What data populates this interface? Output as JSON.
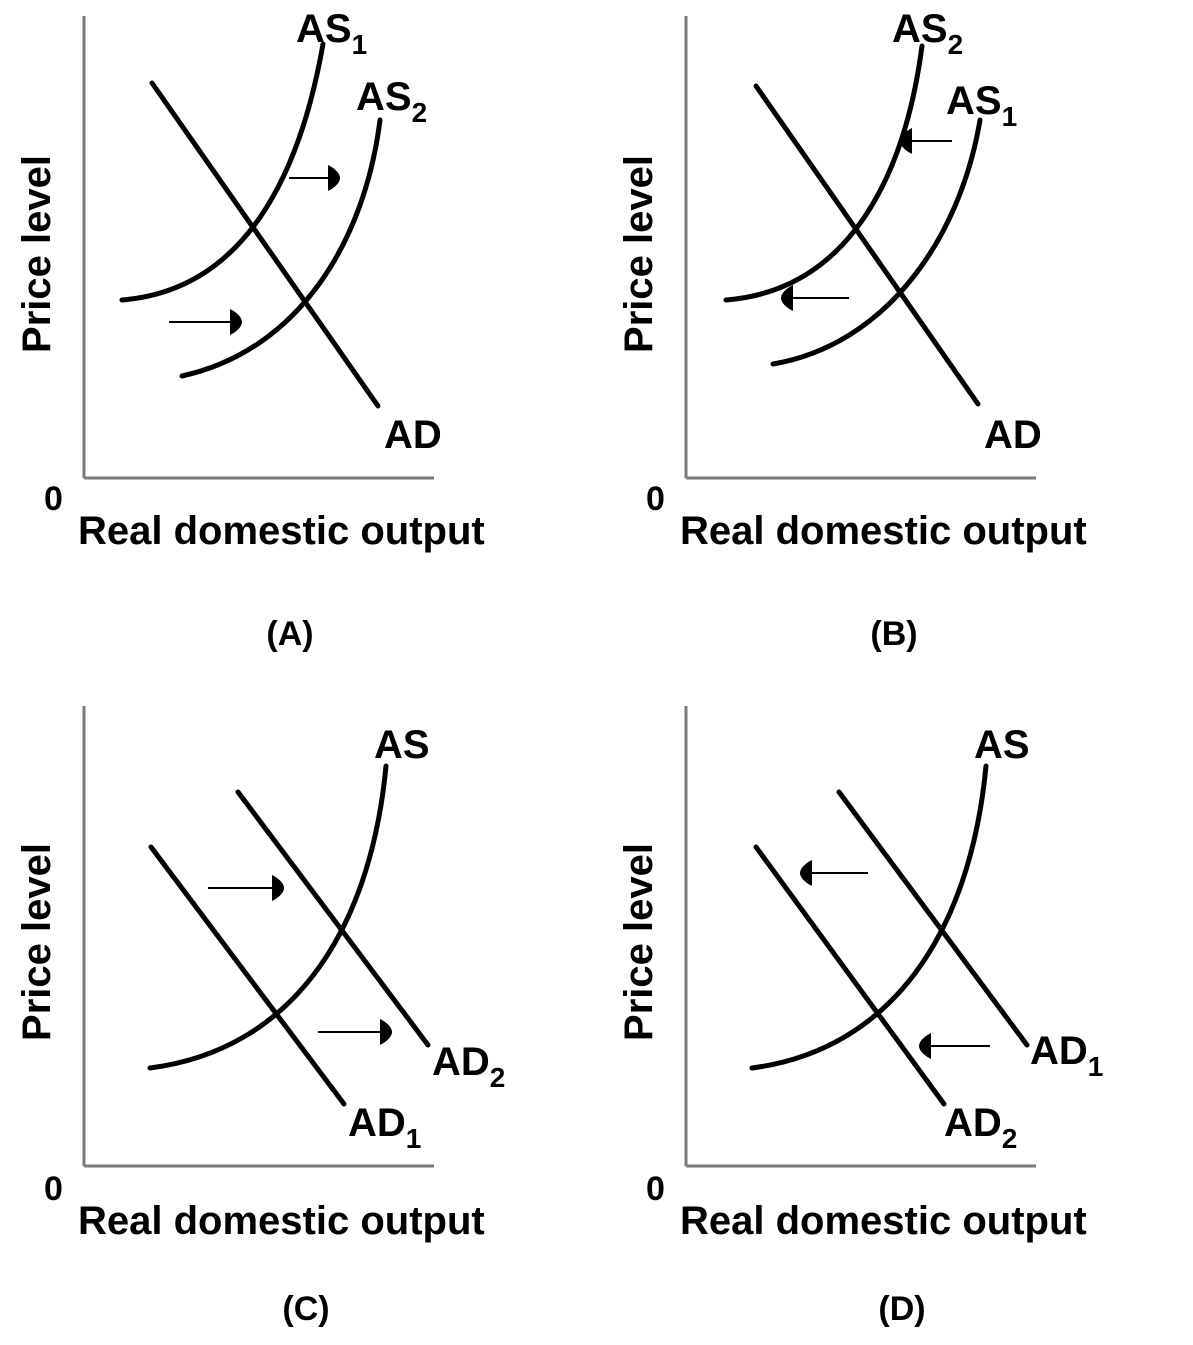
{
  "panels": [
    {
      "id": "A",
      "panel_label": "(A)",
      "x_axis_label": "Real domestic output",
      "y_axis_label": "Price level",
      "origin_label": "0",
      "curves": [
        {
          "name": "AS",
          "sub": "1"
        },
        {
          "name": "AS",
          "sub": "2"
        },
        {
          "name": "AD",
          "sub": ""
        }
      ],
      "shift": "right"
    },
    {
      "id": "B",
      "panel_label": "(B)",
      "x_axis_label": "Real domestic output",
      "y_axis_label": "Price level",
      "origin_label": "0",
      "curves": [
        {
          "name": "AS",
          "sub": "2"
        },
        {
          "name": "AS",
          "sub": "1"
        },
        {
          "name": "AD",
          "sub": ""
        }
      ],
      "shift": "left"
    },
    {
      "id": "C",
      "panel_label": "(C)",
      "x_axis_label": "Real domestic output",
      "y_axis_label": "Price level",
      "origin_label": "0",
      "curves": [
        {
          "name": "AS",
          "sub": ""
        },
        {
          "name": "AD",
          "sub": "2"
        },
        {
          "name": "AD",
          "sub": "1"
        }
      ],
      "shift": "right"
    },
    {
      "id": "D",
      "panel_label": "(D)",
      "x_axis_label": "Real domestic output",
      "y_axis_label": "Price level",
      "origin_label": "0",
      "curves": [
        {
          "name": "AS",
          "sub": ""
        },
        {
          "name": "AD",
          "sub": "1"
        },
        {
          "name": "AD",
          "sub": "2"
        }
      ],
      "shift": "left"
    }
  ]
}
